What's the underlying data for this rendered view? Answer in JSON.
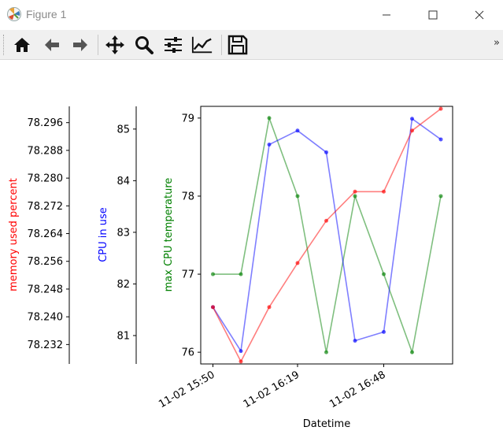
{
  "window": {
    "title": "Figure 1"
  },
  "toolbar": {
    "buttons": [
      "home-icon",
      "back-arrow-icon",
      "forward-arrow-icon",
      "pan-icon",
      "zoom-icon",
      "configure-subplots-icon",
      "edit-axes-icon",
      "save-icon"
    ],
    "more": "»"
  },
  "colors": {
    "memory": "#ff0000",
    "cpu": "#0000ff",
    "temp": "#008000"
  },
  "chart_data": {
    "type": "line",
    "xlabel": "Datetime",
    "x": [
      "11-02 15:50",
      "11-02 16:00",
      "11-02 16:09",
      "11-02 16:19",
      "11-02 16:29",
      "11-02 16:38",
      "11-02 16:48",
      "11-02 16:58",
      "11-02 17:08"
    ],
    "x_ticks": [
      "11-02 15:50",
      "11-02 16:19",
      "11-02 16:48"
    ],
    "series": [
      {
        "name": "memory used percent",
        "axis_label": "memory used percent",
        "color": "#ff0000",
        "ticks": [
          "78.232",
          "78.240",
          "78.248",
          "78.256",
          "78.264",
          "78.272",
          "78.280",
          "78.288",
          "78.296"
        ],
        "ylim": [
          78.2264,
          78.3007
        ],
        "values": [
          78.2428,
          78.2271,
          78.2428,
          78.2555,
          78.2677,
          78.2761,
          78.2761,
          78.2937,
          78.3
        ]
      },
      {
        "name": "CPU in use",
        "axis_label": "CPU in use",
        "color": "#0000ff",
        "ticks": [
          "81",
          "82",
          "83",
          "84",
          "85"
        ],
        "ylim": [
          80.45,
          85.44
        ],
        "values": [
          81.55,
          80.7,
          84.7,
          84.97,
          84.55,
          80.9,
          81.07,
          85.2,
          84.8
        ]
      },
      {
        "name": "max CPU temperature",
        "axis_label": "max CPU temperature",
        "color": "#008000",
        "ticks": [
          "76",
          "77",
          "78",
          "79"
        ],
        "ylim": [
          75.85,
          79.15
        ],
        "values": [
          77,
          77,
          79,
          78,
          76,
          78,
          77,
          76,
          78
        ]
      }
    ]
  }
}
